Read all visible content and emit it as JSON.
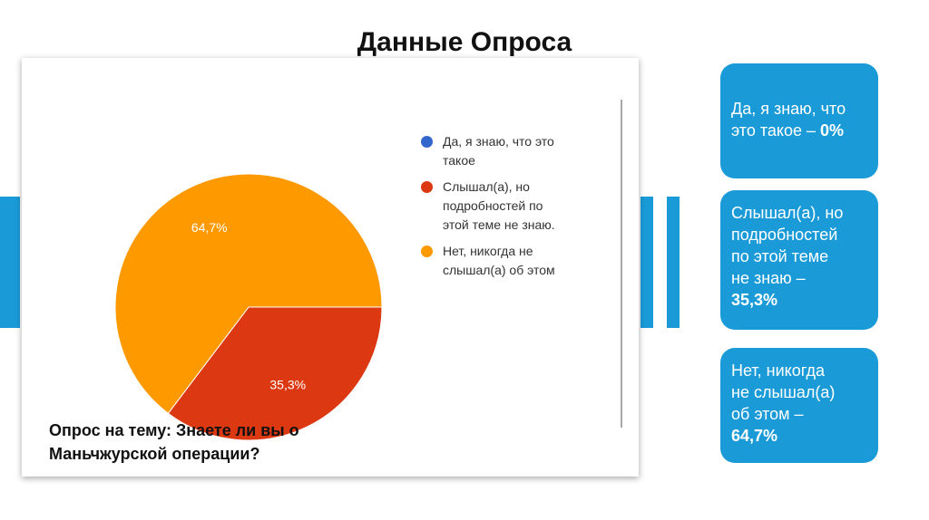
{
  "title": "Данные Опроса",
  "colors": {
    "accent": "#1a9bd7",
    "series_yes": "#3366cc",
    "series_heard": "#dc3912",
    "series_no": "#ff9900"
  },
  "chart_data": {
    "type": "pie",
    "categories": [
      "Да, я знаю, что это такое",
      "Слышал(а), но подробностей по этой теме не знаю.",
      "Нет, никогда не слышал(а) об этом"
    ],
    "values": [
      0,
      35.3,
      64.7
    ],
    "data_labels": [
      "",
      "35,3%",
      "64,7%"
    ],
    "legend_position": "right",
    "title": "Опрос на тему: Знаете ли вы о Маньчжурской операции?"
  },
  "legend": {
    "items": [
      {
        "line1": "Да, я знаю, что это",
        "line2": "такое",
        "line3": "",
        "color": "#3366cc"
      },
      {
        "line1": "Слышал(а), но",
        "line2": "подробностей по",
        "line3": "этой теме не знаю.",
        "color": "#dc3912"
      },
      {
        "line1": "Нет, никогда не",
        "line2": "слышал(а) об этом",
        "line3": "",
        "color": "#ff9900"
      }
    ]
  },
  "caption": {
    "line1": "Опрос на тему: Знаете ли вы о",
    "line2": "Маньчжурской операции?"
  },
  "bubbles": [
    {
      "lines": [
        "Да, я знаю, что",
        "это такое – "
      ],
      "value": "0%"
    },
    {
      "lines": [
        "Слышал(а), но",
        "подробностей",
        "по этой теме",
        "не знаю –"
      ],
      "value": "35,3%"
    },
    {
      "lines": [
        "Нет, никогда",
        "не слышал(а)",
        "об этом –"
      ],
      "value": "64,7%"
    }
  ]
}
